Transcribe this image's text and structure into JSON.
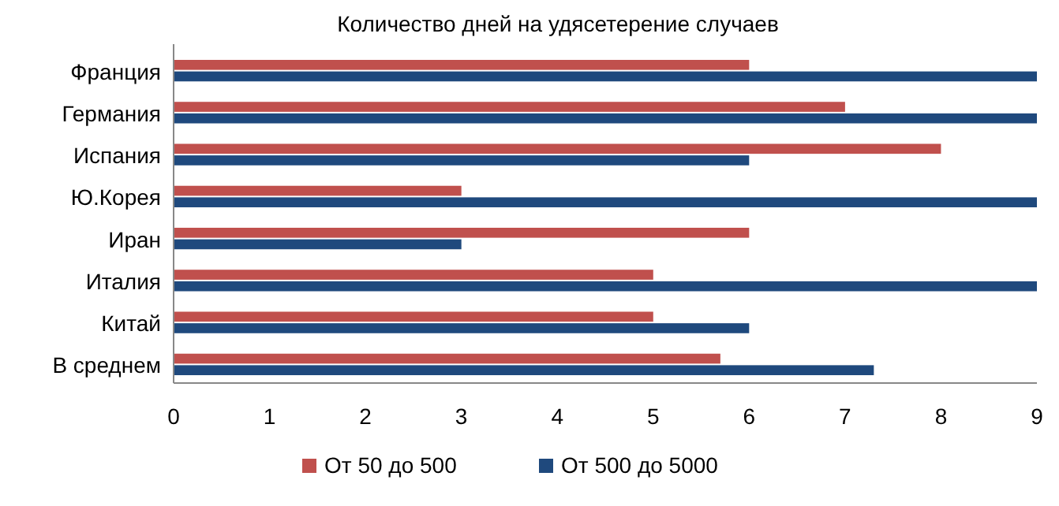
{
  "chart_data": {
    "type": "bar",
    "orientation": "horizontal",
    "title": "Количество дней на удясетерение случаев",
    "categories": [
      "Франция",
      "Германия",
      "Испания",
      "Ю.Корея",
      "Иран",
      "Италия",
      "Китай",
      "В среднем"
    ],
    "series": [
      {
        "name": "От 50 до 500",
        "color": "#c0504d",
        "values": [
          6,
          7,
          8,
          3,
          6,
          5,
          5,
          5.7
        ]
      },
      {
        "name": "От 500 до 5000",
        "color": "#1f497d",
        "values": [
          9,
          9,
          6,
          9,
          3,
          9,
          6,
          7.3
        ]
      }
    ],
    "xlim": [
      0,
      9
    ],
    "xticks": [
      0,
      1,
      2,
      3,
      4,
      5,
      6,
      7,
      8,
      9
    ],
    "grid": false,
    "legend": "bottom"
  }
}
